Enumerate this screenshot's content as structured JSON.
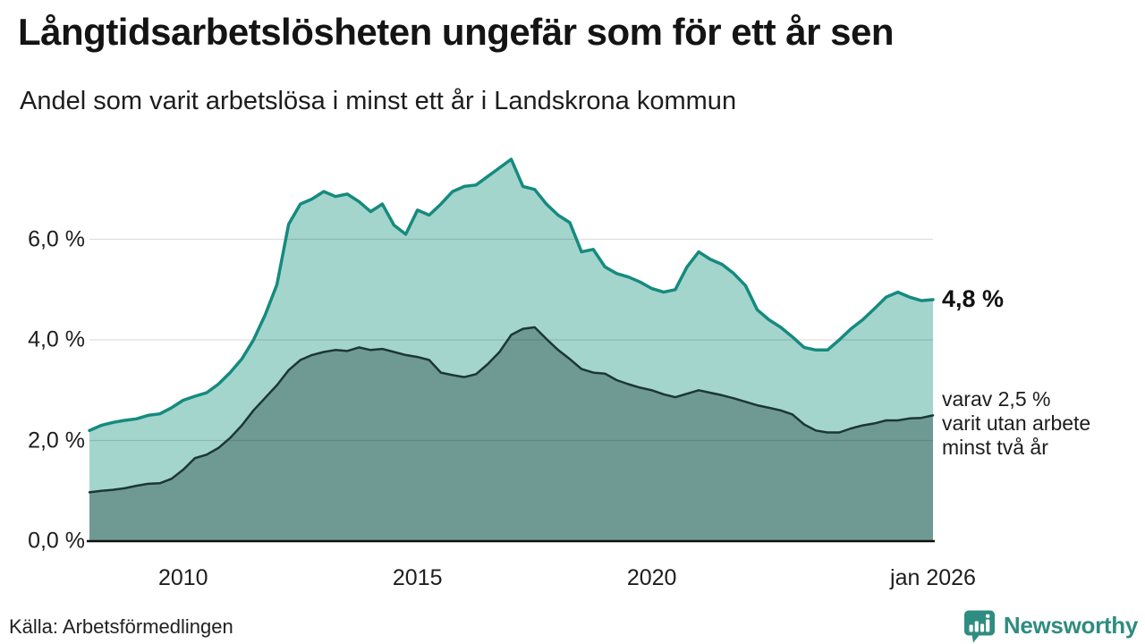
{
  "header": {
    "title": "Långtidsarbetslösheten ungefär som för ett år sen",
    "subtitle": "Andel som varit arbetslösa i minst ett år i Landskrona kommun"
  },
  "chart_data": {
    "type": "area",
    "title": "Långtidsarbetslösheten ungefär som för ett år sen",
    "subtitle": "Andel som varit arbetslösa i minst ett år i Landskrona kommun",
    "unit": "%",
    "grid": true,
    "legend_position": "none",
    "x_range": [
      2008,
      2026
    ],
    "ylim": [
      0,
      7.75
    ],
    "grid_values": [
      2,
      4,
      6
    ],
    "y_ticks": [
      {
        "value": 6,
        "label": "6,0 %"
      },
      {
        "value": 4,
        "label": "4,0 %"
      },
      {
        "value": 2,
        "label": "2,0 %"
      },
      {
        "value": 0,
        "label": "0,0 %"
      }
    ],
    "x_ticks": [
      {
        "year": 2010,
        "label": "2010"
      },
      {
        "year": 2015,
        "label": "2015"
      },
      {
        "year": 2020,
        "label": "2020"
      },
      {
        "year": 2026,
        "label": "jan 2026"
      }
    ],
    "series": [
      {
        "name": "Arbetslösa minst ett år",
        "line_color": "#168a7f",
        "fill_color": "#a3d5cd",
        "line_width": 3.5,
        "end_value": "4,8 %",
        "points": [
          [
            2008,
            2.2
          ],
          [
            2008.25,
            2.3
          ],
          [
            2008.5,
            2.36
          ],
          [
            2008.75,
            2.4
          ],
          [
            2009,
            2.43
          ],
          [
            2009.25,
            2.5
          ],
          [
            2009.5,
            2.53
          ],
          [
            2009.75,
            2.65
          ],
          [
            2010,
            2.8
          ],
          [
            2010.25,
            2.88
          ],
          [
            2010.5,
            2.95
          ],
          [
            2010.75,
            3.12
          ],
          [
            2011,
            3.35
          ],
          [
            2011.25,
            3.62
          ],
          [
            2011.5,
            4.0
          ],
          [
            2011.75,
            4.5
          ],
          [
            2012,
            5.1
          ],
          [
            2012.25,
            6.3
          ],
          [
            2012.5,
            6.7
          ],
          [
            2012.75,
            6.8
          ],
          [
            2013,
            6.95
          ],
          [
            2013.25,
            6.85
          ],
          [
            2013.5,
            6.9
          ],
          [
            2013.75,
            6.75
          ],
          [
            2014,
            6.55
          ],
          [
            2014.25,
            6.7
          ],
          [
            2014.5,
            6.28
          ],
          [
            2014.75,
            6.1
          ],
          [
            2015,
            6.58
          ],
          [
            2015.25,
            6.48
          ],
          [
            2015.5,
            6.7
          ],
          [
            2015.75,
            6.95
          ],
          [
            2016,
            7.05
          ],
          [
            2016.25,
            7.08
          ],
          [
            2016.5,
            7.25
          ],
          [
            2016.75,
            7.42
          ],
          [
            2017,
            7.59
          ],
          [
            2017.25,
            7.05
          ],
          [
            2017.5,
            6.99
          ],
          [
            2017.75,
            6.7
          ],
          [
            2018,
            6.48
          ],
          [
            2018.25,
            6.33
          ],
          [
            2018.5,
            5.75
          ],
          [
            2018.75,
            5.8
          ],
          [
            2019,
            5.45
          ],
          [
            2019.25,
            5.32
          ],
          [
            2019.5,
            5.25
          ],
          [
            2019.75,
            5.15
          ],
          [
            2020,
            5.02
          ],
          [
            2020.25,
            4.95
          ],
          [
            2020.5,
            5.0
          ],
          [
            2020.75,
            5.45
          ],
          [
            2021,
            5.75
          ],
          [
            2021.25,
            5.6
          ],
          [
            2021.5,
            5.5
          ],
          [
            2021.75,
            5.32
          ],
          [
            2022,
            5.08
          ],
          [
            2022.25,
            4.6
          ],
          [
            2022.5,
            4.4
          ],
          [
            2022.75,
            4.25
          ],
          [
            2023,
            4.06
          ],
          [
            2023.25,
            3.85
          ],
          [
            2023.5,
            3.8
          ],
          [
            2023.75,
            3.8
          ],
          [
            2024,
            4.0
          ],
          [
            2024.25,
            4.22
          ],
          [
            2024.5,
            4.4
          ],
          [
            2024.75,
            4.62
          ],
          [
            2025,
            4.85
          ],
          [
            2025.25,
            4.95
          ],
          [
            2025.5,
            4.85
          ],
          [
            2025.75,
            4.78
          ],
          [
            2026,
            4.8
          ]
        ]
      },
      {
        "name": "Arbetslösa minst två år",
        "line_color": "#1c3733",
        "fill_color": "#6f9a93",
        "line_width": 2.5,
        "end_value": "2,5 %",
        "points": [
          [
            2008,
            0.97
          ],
          [
            2008.25,
            1.0
          ],
          [
            2008.5,
            1.02
          ],
          [
            2008.75,
            1.05
          ],
          [
            2009,
            1.1
          ],
          [
            2009.25,
            1.14
          ],
          [
            2009.5,
            1.15
          ],
          [
            2009.75,
            1.24
          ],
          [
            2010,
            1.42
          ],
          [
            2010.25,
            1.65
          ],
          [
            2010.5,
            1.72
          ],
          [
            2010.75,
            1.85
          ],
          [
            2011,
            2.05
          ],
          [
            2011.25,
            2.3
          ],
          [
            2011.5,
            2.6
          ],
          [
            2011.75,
            2.85
          ],
          [
            2012,
            3.1
          ],
          [
            2012.25,
            3.4
          ],
          [
            2012.5,
            3.6
          ],
          [
            2012.75,
            3.7
          ],
          [
            2013,
            3.76
          ],
          [
            2013.25,
            3.8
          ],
          [
            2013.5,
            3.78
          ],
          [
            2013.75,
            3.85
          ],
          [
            2014,
            3.8
          ],
          [
            2014.25,
            3.82
          ],
          [
            2014.5,
            3.76
          ],
          [
            2014.75,
            3.7
          ],
          [
            2015,
            3.66
          ],
          [
            2015.25,
            3.6
          ],
          [
            2015.5,
            3.35
          ],
          [
            2015.75,
            3.3
          ],
          [
            2016,
            3.26
          ],
          [
            2016.25,
            3.32
          ],
          [
            2016.5,
            3.52
          ],
          [
            2016.75,
            3.76
          ],
          [
            2017,
            4.1
          ],
          [
            2017.25,
            4.22
          ],
          [
            2017.5,
            4.25
          ],
          [
            2017.75,
            4.02
          ],
          [
            2018,
            3.8
          ],
          [
            2018.25,
            3.62
          ],
          [
            2018.5,
            3.42
          ],
          [
            2018.75,
            3.35
          ],
          [
            2019,
            3.33
          ],
          [
            2019.25,
            3.2
          ],
          [
            2019.5,
            3.12
          ],
          [
            2019.75,
            3.05
          ],
          [
            2020,
            3.0
          ],
          [
            2020.25,
            2.92
          ],
          [
            2020.5,
            2.86
          ],
          [
            2020.75,
            2.93
          ],
          [
            2021,
            3.0
          ],
          [
            2021.25,
            2.95
          ],
          [
            2021.5,
            2.9
          ],
          [
            2021.75,
            2.84
          ],
          [
            2022,
            2.77
          ],
          [
            2022.25,
            2.7
          ],
          [
            2022.5,
            2.65
          ],
          [
            2022.75,
            2.6
          ],
          [
            2023,
            2.52
          ],
          [
            2023.25,
            2.32
          ],
          [
            2023.5,
            2.2
          ],
          [
            2023.75,
            2.16
          ],
          [
            2024,
            2.16
          ],
          [
            2024.25,
            2.24
          ],
          [
            2024.5,
            2.3
          ],
          [
            2024.75,
            2.34
          ],
          [
            2025,
            2.4
          ],
          [
            2025.25,
            2.4
          ],
          [
            2025.5,
            2.44
          ],
          [
            2025.75,
            2.45
          ],
          [
            2026,
            2.5
          ]
        ]
      }
    ],
    "annotations": {
      "end_value_label": "4,8 %",
      "secondary_label": "varav 2,5 %\nvarit utan arbete\nminst två år"
    }
  },
  "footer": {
    "source": "Källa: Arbetsförmedlingen",
    "brand": "Newsworthy"
  },
  "colors": {
    "accent_teal": "#168a7f",
    "light_fill": "#a3d5cd",
    "dark_fill": "#6f9a93",
    "dark_line": "#1c3733",
    "brand_teal": "#2f8c80",
    "gridline": "#dcdcdc",
    "text": "#1d1d1d"
  }
}
